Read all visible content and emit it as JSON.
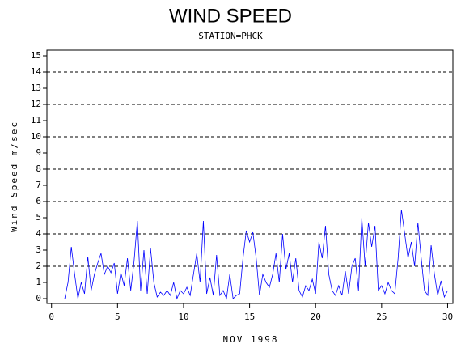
{
  "chart_data": {
    "type": "line",
    "title": "WIND SPEED",
    "subtitle": "STATION=PHCK",
    "x_label": "NOV 1998",
    "y_label": "Wind Speed m/sec",
    "x": [
      1,
      1.25,
      1.5,
      1.75,
      2,
      2.25,
      2.5,
      2.75,
      3,
      3.25,
      3.5,
      3.75,
      4,
      4.25,
      4.5,
      4.75,
      5,
      5.25,
      5.5,
      5.75,
      6,
      6.25,
      6.5,
      6.75,
      7,
      7.25,
      7.5,
      7.75,
      8,
      8.25,
      8.5,
      8.75,
      9,
      9.25,
      9.5,
      9.75,
      10,
      10.25,
      10.5,
      10.75,
      11,
      11.25,
      11.5,
      11.75,
      12,
      12.25,
      12.5,
      12.75,
      13,
      13.25,
      13.5,
      13.75,
      14,
      14.25,
      14.5,
      14.75,
      15,
      15.25,
      15.5,
      15.75,
      16,
      16.25,
      16.5,
      16.75,
      17,
      17.25,
      17.5,
      17.75,
      18,
      18.25,
      18.5,
      18.75,
      19,
      19.25,
      19.5,
      19.75,
      20,
      20.25,
      20.5,
      20.75,
      21,
      21.25,
      21.5,
      21.75,
      22,
      22.25,
      22.5,
      22.75,
      23,
      23.25,
      23.5,
      23.75,
      24,
      24.25,
      24.5,
      24.75,
      25,
      25.25,
      25.5,
      25.75,
      26,
      26.25,
      26.5,
      26.75,
      27,
      27.25,
      27.5,
      27.75,
      28,
      28.25,
      28.5,
      28.75,
      29,
      29.25,
      29.5,
      29.75,
      30
    ],
    "series": [
      {
        "name": "Wind Speed",
        "color": "#0000ff",
        "values": [
          0,
          1,
          3.2,
          1.5,
          0,
          1,
          0.3,
          2.6,
          0.5,
          1.5,
          2.2,
          2.8,
          1.5,
          2,
          1.6,
          2.2,
          0.3,
          1.6,
          0.8,
          2.5,
          0.5,
          2.3,
          4.8,
          0.5,
          3,
          0.3,
          3.1,
          1,
          0.1,
          0.4,
          0.2,
          0.5,
          0.2,
          1,
          0,
          0.5,
          0.3,
          0.7,
          0.2,
          1.5,
          2.8,
          1,
          4.8,
          0.3,
          1.3,
          0.2,
          2.7,
          0.2,
          0.5,
          0,
          1.5,
          0,
          0.2,
          0.3,
          2.5,
          4.2,
          3.5,
          4.1,
          2.5,
          0.2,
          1.5,
          1,
          0.7,
          1.5,
          2.8,
          1,
          4,
          1.8,
          2.8,
          1,
          2.5,
          0.5,
          0.1,
          0.8,
          0.5,
          1.2,
          0.3,
          3.5,
          2.5,
          4.5,
          1.5,
          0.5,
          0.2,
          0.8,
          0.2,
          1.7,
          0.3,
          2,
          2.5,
          0.5,
          5,
          2,
          4.7,
          3.2,
          4.5,
          0.5,
          0.8,
          0.3,
          1,
          0.5,
          0.3,
          2.5,
          5.5,
          4,
          2.5,
          3.5,
          2,
          4.7,
          2.5,
          0.5,
          0.2,
          3.3,
          1.5,
          0.2,
          1.1,
          0.1,
          0.5
        ]
      }
    ],
    "xlim": [
      -0.35,
      30.4
    ],
    "xticks": [
      0,
      5,
      10,
      15,
      20,
      25,
      30
    ],
    "ylim": [
      -0.3,
      15.35
    ],
    "yticks": [
      0,
      1,
      2,
      3,
      4,
      5,
      6,
      7,
      8,
      9,
      10,
      11,
      12,
      13,
      14,
      15
    ],
    "grid_lines": [
      2,
      4,
      6,
      8,
      10,
      12,
      14
    ]
  }
}
